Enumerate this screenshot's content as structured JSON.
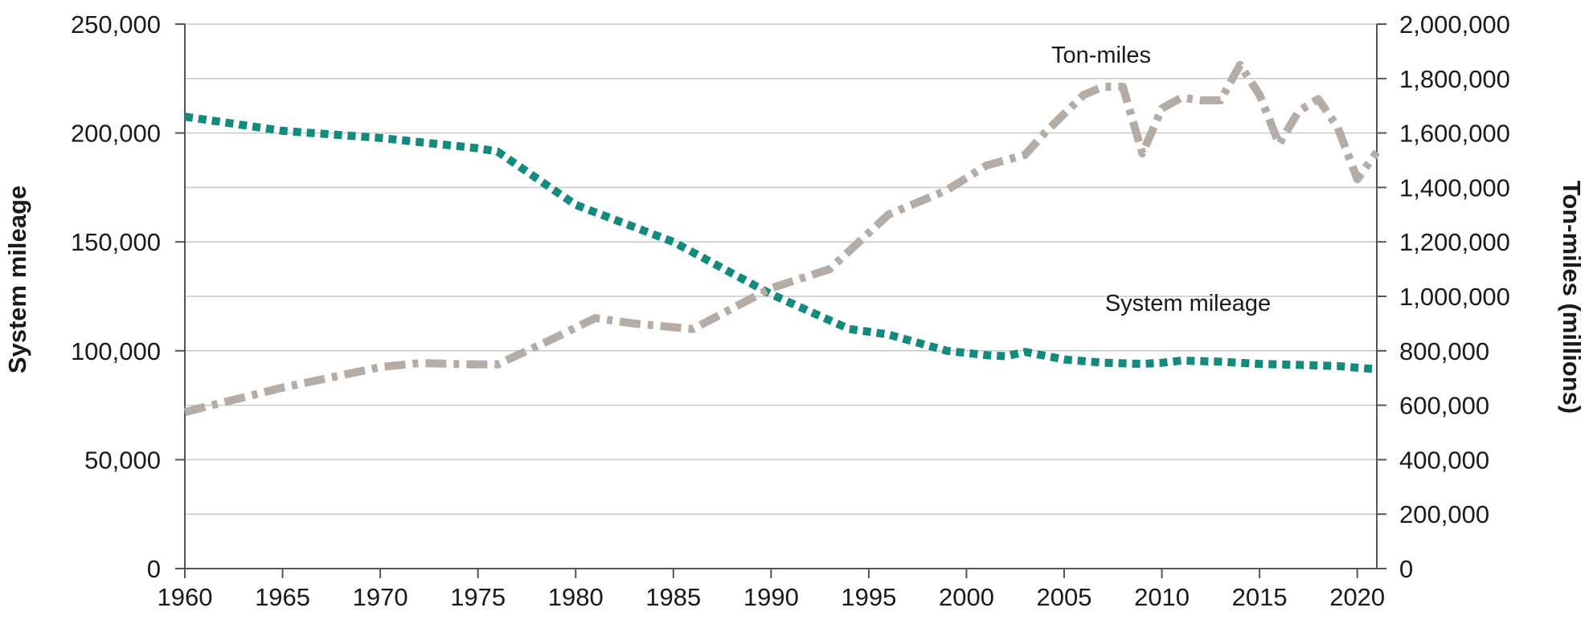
{
  "chart_data": {
    "type": "line",
    "title": "",
    "xlabel": "",
    "ylabel_left": "System mileage",
    "ylabel_right": "Ton-miles (millions)",
    "grid": true,
    "x_ticks": [
      "1960",
      "1965",
      "1970",
      "1975",
      "1980",
      "1985",
      "1990",
      "1995",
      "2000",
      "2005",
      "2010",
      "2015",
      "2020"
    ],
    "y_left_ticks": [
      "0",
      "50,000",
      "100,000",
      "150,000",
      "200,000",
      "250,000"
    ],
    "y_right_ticks": [
      "0",
      "200,000",
      "400,000",
      "600,000",
      "800,000",
      "1,000,000",
      "1,200,000",
      "1,400,000",
      "1,600,000",
      "1,800,000",
      "2,000,000"
    ],
    "xlim": [
      1960,
      2021
    ],
    "ylim_left": [
      0,
      250000
    ],
    "ylim_right": [
      0,
      2000000
    ],
    "series": [
      {
        "name": "System mileage",
        "axis": "left",
        "color": "#138a7e",
        "style": "dotted",
        "x": [
          1960,
          1965,
          1970,
          1975,
          1976,
          1980,
          1985,
          1990,
          1994,
          1996,
          1999,
          2001,
          2002,
          2003,
          2005,
          2007,
          2009,
          2010,
          2011,
          2013,
          2015,
          2017,
          2019,
          2021
        ],
        "y": [
          207500,
          201000,
          197700,
          193000,
          191500,
          167000,
          150000,
          126000,
          110000,
          107500,
          100000,
          98000,
          97500,
          99500,
          96000,
          94500,
          94000,
          94500,
          95500,
          95000,
          94000,
          93500,
          93000,
          91500
        ]
      },
      {
        "name": "Ton-miles",
        "axis": "right",
        "color": "#b5aca6",
        "style": "dash-dot",
        "x": [
          1960,
          1965,
          1970,
          1972,
          1975,
          1976,
          1979,
          1981,
          1983,
          1986,
          1990,
          1993,
          1996,
          1999,
          2001,
          2003,
          2004,
          2006,
          2007,
          2008,
          2009,
          2010,
          2011,
          2012,
          2013,
          2014,
          2015,
          2016,
          2017,
          2018,
          2019,
          2020,
          2021
        ],
        "y": [
          575000,
          665000,
          740000,
          755000,
          750000,
          750000,
          850000,
          920000,
          900000,
          880000,
          1030000,
          1100000,
          1300000,
          1390000,
          1480000,
          1520000,
          1600000,
          1740000,
          1770000,
          1770000,
          1525000,
          1690000,
          1730000,
          1720000,
          1720000,
          1850000,
          1740000,
          1560000,
          1680000,
          1725000,
          1620000,
          1430000,
          1530000
        ]
      }
    ],
    "annotations": [
      {
        "text": "Ton-miles",
        "series": "Ton-miles"
      },
      {
        "text": "System mileage",
        "series": "System mileage"
      }
    ]
  }
}
